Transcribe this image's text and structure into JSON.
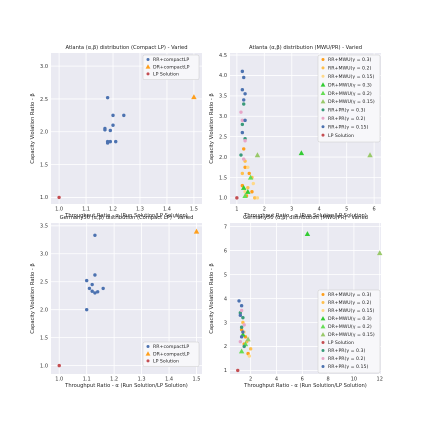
{
  "colors": {
    "plot_bg": "#eaeaf2",
    "grid": "#ffffff",
    "legend_bg": "#f7f7fa",
    "legend_border": "#cccccc"
  },
  "chart_data": [
    {
      "type": "scatter",
      "title": "Atlanta (α,β) distribution (Compact LP) - Varied",
      "xlabel": "Throughput Ratio - α (Run Solution/LP Solution)",
      "ylabel": "Capacity Violation Ratio - β",
      "xlim": [
        0.97,
        1.53
      ],
      "ylim": [
        0.9,
        3.2
      ],
      "xticks": [
        1.0,
        1.1,
        1.2,
        1.3,
        1.4,
        1.5
      ],
      "yticks": [
        1.0,
        1.5,
        2.0,
        2.5,
        3.0
      ],
      "legend_position": "top-right",
      "series": [
        {
          "name": "RR+compactLP",
          "marker": "circle",
          "color": "#4c72b0",
          "points": [
            [
              1.18,
              2.52
            ],
            [
              1.2,
              2.25
            ],
            [
              1.24,
              2.25
            ],
            [
              1.2,
              2.1
            ],
            [
              1.17,
              2.05
            ],
            [
              1.17,
              2.03
            ],
            [
              1.19,
              2.02
            ],
            [
              1.18,
              1.85
            ],
            [
              1.19,
              1.85
            ],
            [
              1.21,
              1.85
            ],
            [
              1.18,
              1.83
            ]
          ]
        },
        {
          "name": "DR+compactLP",
          "marker": "triangle",
          "color": "#ff9f1c",
          "points": [
            [
              1.5,
              2.53
            ]
          ]
        },
        {
          "name": "LP Solution",
          "marker": "circle",
          "color": "#c44e52",
          "points": [
            [
              1.0,
              1.0
            ]
          ]
        }
      ]
    },
    {
      "type": "scatter",
      "title": "Atlanta (α,β) distribution (MWU/PR) - Varied",
      "xlabel": "Throughput Ratio - α (Run Solution/LP Solution)",
      "ylabel": "Capacity Violation Ratio - β",
      "xlim": [
        0.75,
        6.25
      ],
      "ylim": [
        0.85,
        4.55
      ],
      "xticks": [
        1,
        2,
        3,
        4,
        5,
        6
      ],
      "yticks": [
        1.0,
        1.5,
        2.0,
        2.5,
        3.0,
        3.5,
        4.0,
        4.5
      ],
      "legend_position": "top-right",
      "series": [
        {
          "name": "RR+MWU(γ = 0.3)",
          "marker": "circle",
          "color": "#ff9f1c",
          "points": [
            [
              1.25,
              2.2
            ],
            [
              1.3,
              1.75
            ],
            [
              1.45,
              1.6
            ],
            [
              1.2,
              1.3
            ],
            [
              1.55,
              1.15
            ],
            [
              1.35,
              1.05
            ]
          ]
        },
        {
          "name": "RR+MWU(γ = 0.2)",
          "marker": "circle",
          "color": "#ffc04d",
          "points": [
            [
              1.3,
              1.9
            ],
            [
              1.55,
              1.5
            ],
            [
              1.2,
              1.6
            ],
            [
              1.4,
              1.25
            ],
            [
              1.65,
              1.0
            ]
          ]
        },
        {
          "name": "RR+MWU(γ = 0.15)",
          "marker": "circle",
          "color": "#ffd98a",
          "points": [
            [
              1.4,
              1.75
            ],
            [
              1.6,
              1.35
            ],
            [
              1.3,
              1.15
            ],
            [
              1.75,
              1.0
            ]
          ]
        },
        {
          "name": "DR+MWU(γ = 0.3)",
          "marker": "triangle",
          "color": "#33cc33",
          "points": [
            [
              3.35,
              2.1
            ],
            [
              1.25,
              1.25
            ],
            [
              1.4,
              1.15
            ]
          ]
        },
        {
          "name": "DR+MWU(γ = 0.2)",
          "marker": "triangle",
          "color": "#66dd55",
          "points": [
            [
              1.5,
              1.5
            ],
            [
              1.3,
              1.05
            ]
          ]
        },
        {
          "name": "DR+MWU(γ = 0.15)",
          "marker": "triangle",
          "color": "#99c96a",
          "points": [
            [
              5.85,
              2.05
            ],
            [
              1.75,
              2.05
            ]
          ]
        },
        {
          "name": "RR+PR(γ = 0.3)",
          "marker": "circle",
          "color": "#3a9a7a",
          "points": [
            [
              1.25,
              3.3
            ],
            [
              1.2,
              2.8
            ],
            [
              1.3,
              2.45
            ],
            [
              1.15,
              2.05
            ]
          ]
        },
        {
          "name": "RR+PR(γ = 0.2)",
          "marker": "circle",
          "color": "#e7a6c8",
          "points": [
            [
              1.15,
              3.1
            ],
            [
              1.2,
              2.9
            ],
            [
              1.3,
              2.4
            ],
            [
              1.25,
              1.95
            ]
          ]
        },
        {
          "name": "RR+PR(γ = 0.15)",
          "marker": "circle",
          "color": "#4c72b0",
          "points": [
            [
              1.2,
              4.1
            ],
            [
              1.25,
              3.95
            ],
            [
              1.3,
              3.55
            ],
            [
              1.2,
              3.65
            ],
            [
              1.25,
              3.4
            ],
            [
              1.3,
              2.9
            ],
            [
              1.2,
              2.6
            ]
          ]
        },
        {
          "name": "LP Solution",
          "marker": "circle",
          "color": "#c44e52",
          "points": [
            [
              1.0,
              1.0
            ]
          ]
        }
      ]
    },
    {
      "type": "scatter",
      "title": "Germany50 (α,β) distribution (Compact LP) - Varied",
      "xlabel": "Throughput Ratio - α (Run Solution/LP Solution)",
      "ylabel": "Capacity Violation Ratio - β",
      "xlim": [
        0.97,
        1.52
      ],
      "ylim": [
        0.85,
        3.55
      ],
      "xticks": [
        1.0,
        1.1,
        1.2,
        1.3,
        1.4,
        1.5
      ],
      "yticks": [
        1.0,
        1.5,
        2.0,
        2.5,
        3.0,
        3.5
      ],
      "legend_position": "bottom-right",
      "series": [
        {
          "name": "RR+compactLP",
          "marker": "circle",
          "color": "#4c72b0",
          "points": [
            [
              1.13,
              3.33
            ],
            [
              1.13,
              2.62
            ],
            [
              1.1,
              2.52
            ],
            [
              1.12,
              2.45
            ],
            [
              1.16,
              2.38
            ],
            [
              1.11,
              2.38
            ],
            [
              1.12,
              2.33
            ],
            [
              1.14,
              2.32
            ],
            [
              1.13,
              2.3
            ],
            [
              1.1,
              2.0
            ]
          ]
        },
        {
          "name": "DR+compactLP",
          "marker": "triangle",
          "color": "#ff9f1c",
          "points": [
            [
              1.5,
              3.4
            ]
          ]
        },
        {
          "name": "LP Solution",
          "marker": "circle",
          "color": "#c44e52",
          "points": [
            [
              1.0,
              1.0
            ]
          ]
        }
      ]
    },
    {
      "type": "scatter",
      "title": "Germany50 (α,β) distribution (MWU/PR) - Varied",
      "xlabel": "Throughput Ratio - α (Run Solution/LP Solution)",
      "ylabel": "Capacity Violation Ratio - β",
      "xlim": [
        0.4,
        12.1
      ],
      "ylim": [
        0.85,
        7.15
      ],
      "xticks": [
        2,
        4,
        6,
        8,
        10,
        12
      ],
      "yticks": [
        1,
        2,
        3,
        4,
        5,
        6,
        7
      ],
      "legend_position": "top-right",
      "series": [
        {
          "name": "RR+MWU(γ = 0.3)",
          "marker": "circle",
          "color": "#ff9f1c",
          "points": [
            [
              1.3,
              2.7
            ],
            [
              1.6,
              2.4
            ],
            [
              1.5,
              2.1
            ],
            [
              1.8,
              1.7
            ]
          ]
        },
        {
          "name": "RR+MWU(γ = 0.2)",
          "marker": "circle",
          "color": "#ffc04d",
          "points": [
            [
              1.4,
              3.0
            ],
            [
              1.7,
              2.2
            ],
            [
              2.0,
              1.9
            ]
          ]
        },
        {
          "name": "RR+MWU(γ = 0.15)",
          "marker": "circle",
          "color": "#ffd98a",
          "points": [
            [
              1.5,
              2.6
            ],
            [
              1.9,
              1.6
            ]
          ]
        },
        {
          "name": "DR+MWU(γ = 0.3)",
          "marker": "triangle",
          "color": "#33cc33",
          "points": [
            [
              6.4,
              6.7
            ],
            [
              1.4,
              2.5
            ]
          ]
        },
        {
          "name": "DR+MWU(γ = 0.2)",
          "marker": "triangle",
          "color": "#66dd55",
          "points": [
            [
              1.6,
              2.1
            ],
            [
              1.3,
              1.8
            ]
          ]
        },
        {
          "name": "DR+MWU(γ = 0.15)",
          "marker": "triangle",
          "color": "#99c96a",
          "points": [
            [
              12.0,
              5.9
            ],
            [
              1.8,
              2.3
            ]
          ]
        },
        {
          "name": "LP Solution",
          "marker": "circle",
          "color": "#c44e52",
          "points": [
            [
              1.0,
              1.0
            ]
          ]
        },
        {
          "name": "RR+PR(γ = 0.3)",
          "marker": "circle",
          "color": "#3a9a7a",
          "points": [
            [
              1.2,
              3.4
            ],
            [
              1.4,
              3.2
            ],
            [
              1.3,
              2.8
            ],
            [
              1.5,
              2.0
            ]
          ]
        },
        {
          "name": "RR+PR(γ = 0.2)",
          "marker": "circle",
          "color": "#e7a6c8",
          "points": [
            [
              1.3,
              3.5
            ],
            [
              1.5,
              2.9
            ],
            [
              1.2,
              2.2
            ]
          ]
        },
        {
          "name": "RR+PR(γ = 0.15)",
          "marker": "circle",
          "color": "#4c72b0",
          "points": [
            [
              1.1,
              3.9
            ],
            [
              1.3,
              3.7
            ],
            [
              1.2,
              3.3
            ],
            [
              1.4,
              2.6
            ],
            [
              1.3,
              2.4
            ]
          ]
        }
      ]
    }
  ]
}
